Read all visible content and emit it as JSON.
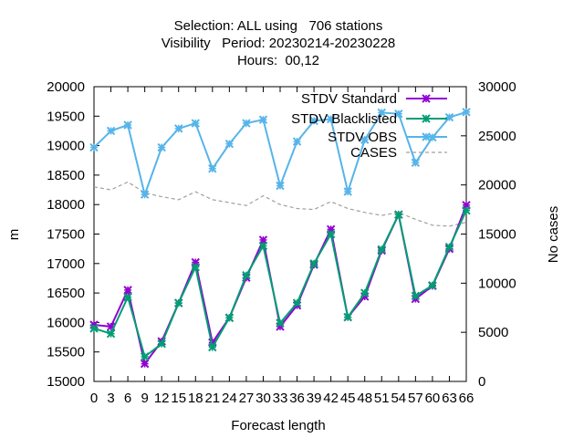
{
  "chart_data": {
    "type": "line",
    "title_lines": [
      "Selection: ALL using   706 stations",
      "Visibility   Period: 20230214-20230228",
      "Hours:  00,12"
    ],
    "xlabel": "Forecast length",
    "ylabel": "m",
    "y2label": "No cases",
    "xlim": [
      0,
      66
    ],
    "ylim": [
      15000,
      20000
    ],
    "y2lim": [
      0,
      30000
    ],
    "x_ticks": [
      "0",
      "3",
      "6",
      "9",
      "12",
      "15",
      "18",
      "21",
      "24",
      "27",
      "30",
      "33",
      "36",
      "39",
      "42",
      "45",
      "48",
      "51",
      "54",
      "57",
      "60",
      "63",
      "66"
    ],
    "y_ticks": [
      "15000",
      "15500",
      "16000",
      "16500",
      "17000",
      "17500",
      "18000",
      "18500",
      "19000",
      "19500",
      "20000"
    ],
    "y2_ticks": [
      "0",
      "5000",
      "10000",
      "15000",
      "20000",
      "25000",
      "30000"
    ],
    "x": [
      0,
      3,
      6,
      9,
      12,
      15,
      18,
      21,
      24,
      27,
      30,
      33,
      36,
      39,
      42,
      45,
      48,
      51,
      54,
      57,
      60,
      63,
      66
    ],
    "legend_position": "top-right",
    "grid": false,
    "series": [
      {
        "name": "STDV Standard",
        "axis": "y",
        "color": "#9400d3",
        "marker": "x",
        "values": [
          15960,
          15930,
          16550,
          15300,
          15680,
          16330,
          17020,
          15660,
          16080,
          16760,
          17400,
          15930,
          16290,
          16980,
          17580,
          16090,
          16440,
          17220,
          17830,
          16400,
          16620,
          17250,
          17990
        ]
      },
      {
        "name": "STDV Blacklisted",
        "axis": "y",
        "color": "#009e73",
        "marker": "x",
        "values": [
          15900,
          15810,
          16430,
          15420,
          15640,
          16330,
          16940,
          15580,
          16080,
          16800,
          17300,
          15990,
          16330,
          17000,
          17500,
          16090,
          16500,
          17240,
          17830,
          16450,
          16630,
          17280,
          17900
        ]
      },
      {
        "name": "STDV OBS",
        "axis": "y",
        "color": "#56b4e9",
        "marker": "x",
        "values": [
          18970,
          19250,
          19350,
          18170,
          18970,
          19290,
          19380,
          18610,
          19030,
          19380,
          19440,
          18320,
          19070,
          19420,
          19450,
          18220,
          19100,
          19560,
          19540,
          18710,
          19140,
          19480,
          19570
        ]
      },
      {
        "name": "CASES",
        "axis": "y2",
        "color": "#a0a0a0",
        "marker": "none",
        "dash": true,
        "values": [
          19800,
          19500,
          20300,
          19200,
          18800,
          18500,
          19300,
          18500,
          18200,
          17900,
          18900,
          18000,
          17600,
          17500,
          18300,
          17600,
          17200,
          16900,
          17200,
          16500,
          15900,
          15800,
          16200
        ]
      }
    ]
  }
}
